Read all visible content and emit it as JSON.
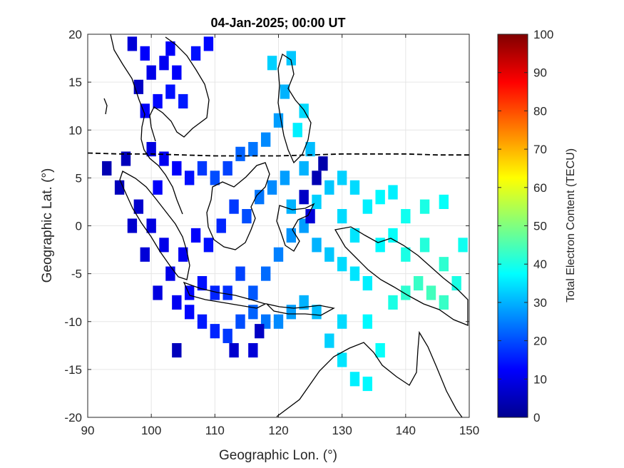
{
  "chart_data": {
    "type": "heatmap",
    "title": "04-Jan-2025; 00:00 UT",
    "xlabel": "Geographic Lon. (°)",
    "ylabel": "Geographic Lat. (°)",
    "xlim": [
      90,
      150
    ],
    "ylim": [
      -20,
      20
    ],
    "xticks": [
      "90",
      "100",
      "110",
      "120",
      "130",
      "140",
      "150"
    ],
    "yticks": [
      "20",
      "15",
      "10",
      "5",
      "0",
      "-5",
      "-10",
      "-15",
      "-20"
    ],
    "grid": true,
    "colormap": "jet",
    "colorbar": {
      "label": "Total Electron Content (TECU)",
      "range": [
        0,
        100
      ],
      "ticks": [
        "100",
        "90",
        "80",
        "70",
        "60",
        "50",
        "40",
        "30",
        "20",
        "10",
        "0"
      ]
    },
    "magnetic_equator_lat": [
      7.6,
      7.5,
      7.5,
      7.4,
      7.3,
      7.3,
      7.3,
      7.4,
      7.5,
      7.5,
      7.5,
      7.4,
      7.4
    ],
    "magnetic_equator_lon": [
      90,
      95,
      100,
      105,
      110,
      115,
      120,
      125,
      130,
      135,
      140,
      145,
      150
    ],
    "tec_cells": [
      {
        "lon": 97,
        "lat": 19,
        "tec": 8
      },
      {
        "lon": 99,
        "lat": 18,
        "tec": 12
      },
      {
        "lon": 100,
        "lat": 16,
        "tec": 10
      },
      {
        "lon": 102,
        "lat": 17,
        "tec": 11
      },
      {
        "lon": 104,
        "lat": 16,
        "tec": 12
      },
      {
        "lon": 101,
        "lat": 13,
        "tec": 13
      },
      {
        "lon": 103,
        "lat": 14,
        "tec": 14
      },
      {
        "lon": 105,
        "lat": 13,
        "tec": 15
      },
      {
        "lon": 99,
        "lat": 12,
        "tec": 12
      },
      {
        "lon": 107,
        "lat": 18,
        "tec": 14
      },
      {
        "lon": 109,
        "lat": 19,
        "tec": 13
      },
      {
        "lon": 103,
        "lat": 18.5,
        "tec": 12
      },
      {
        "lon": 98,
        "lat": 14.5,
        "tec": 6
      },
      {
        "lon": 100,
        "lat": 8,
        "tec": 9
      },
      {
        "lon": 102,
        "lat": 7,
        "tec": 11
      },
      {
        "lon": 101,
        "lat": 4,
        "tec": 12
      },
      {
        "lon": 104,
        "lat": 6,
        "tec": 12
      },
      {
        "lon": 106,
        "lat": 5,
        "tec": 14
      },
      {
        "lon": 108,
        "lat": 6,
        "tec": 18
      },
      {
        "lon": 110,
        "lat": 5,
        "tec": 20
      },
      {
        "lon": 112,
        "lat": 6,
        "tec": 19
      },
      {
        "lon": 114,
        "lat": 7.5,
        "tec": 22
      },
      {
        "lon": 116,
        "lat": 8,
        "tec": 24
      },
      {
        "lon": 118,
        "lat": 9,
        "tec": 26
      },
      {
        "lon": 120,
        "lat": 11,
        "tec": 28
      },
      {
        "lon": 121,
        "lat": 14,
        "tec": 30
      },
      {
        "lon": 122,
        "lat": 17.5,
        "tec": 32
      },
      {
        "lon": 119,
        "lat": 17,
        "tec": 33
      },
      {
        "lon": 123,
        "lat": 10,
        "tec": 36
      },
      {
        "lon": 124,
        "lat": 12,
        "tec": 34
      },
      {
        "lon": 125,
        "lat": 8,
        "tec": 31
      },
      {
        "lon": 124,
        "lat": 6,
        "tec": 30
      },
      {
        "lon": 121,
        "lat": 5,
        "tec": 28
      },
      {
        "lon": 119,
        "lat": 4,
        "tec": 26
      },
      {
        "lon": 117,
        "lat": 3,
        "tec": 24
      },
      {
        "lon": 115,
        "lat": 1,
        "tec": 20
      },
      {
        "lon": 113,
        "lat": 2,
        "tec": 18
      },
      {
        "lon": 111,
        "lat": 0,
        "tec": 16
      },
      {
        "lon": 109,
        "lat": -2,
        "tec": 14
      },
      {
        "lon": 107,
        "lat": -1,
        "tec": 12
      },
      {
        "lon": 105,
        "lat": -3,
        "tec": 11
      },
      {
        "lon": 103,
        "lat": -5,
        "tec": 10
      },
      {
        "lon": 101,
        "lat": -7,
        "tec": 9
      },
      {
        "lon": 99,
        "lat": -3,
        "tec": 8
      },
      {
        "lon": 97,
        "lat": 0,
        "tec": 7
      },
      {
        "lon": 95,
        "lat": 4,
        "tec": 5
      },
      {
        "lon": 93,
        "lat": 6,
        "tec": 4
      },
      {
        "lon": 96,
        "lat": 7,
        "tec": 5
      },
      {
        "lon": 98,
        "lat": 2,
        "tec": 7
      },
      {
        "lon": 100,
        "lat": 0,
        "tec": 9
      },
      {
        "lon": 102,
        "lat": -2,
        "tec": 10
      },
      {
        "lon": 104,
        "lat": -8,
        "tec": 11
      },
      {
        "lon": 106,
        "lat": -9,
        "tec": 13
      },
      {
        "lon": 108,
        "lat": -10,
        "tec": 15
      },
      {
        "lon": 110,
        "lat": -11,
        "tec": 16
      },
      {
        "lon": 112,
        "lat": -11.5,
        "tec": 18
      },
      {
        "lon": 114,
        "lat": -10,
        "tec": 20
      },
      {
        "lon": 116,
        "lat": -9,
        "tec": 22
      },
      {
        "lon": 118,
        "lat": -10,
        "tec": 24
      },
      {
        "lon": 120,
        "lat": -10,
        "tec": 26
      },
      {
        "lon": 122,
        "lat": -9,
        "tec": 28
      },
      {
        "lon": 124,
        "lat": -8,
        "tec": 30
      },
      {
        "lon": 126,
        "lat": -9,
        "tec": 31
      },
      {
        "lon": 128,
        "lat": -12,
        "tec": 33
      },
      {
        "lon": 130,
        "lat": -14,
        "tec": 35
      },
      {
        "lon": 132,
        "lat": -16,
        "tec": 36
      },
      {
        "lon": 134,
        "lat": -16.5,
        "tec": 37
      },
      {
        "lon": 136,
        "lat": -13,
        "tec": 38
      },
      {
        "lon": 138,
        "lat": -8,
        "tec": 40
      },
      {
        "lon": 140,
        "lat": -7,
        "tec": 42
      },
      {
        "lon": 142,
        "lat": -6,
        "tec": 43
      },
      {
        "lon": 144,
        "lat": -7,
        "tec": 44
      },
      {
        "lon": 146,
        "lat": -4,
        "tec": 42
      },
      {
        "lon": 148,
        "lat": -6,
        "tec": 40
      },
      {
        "lon": 149,
        "lat": -2,
        "tec": 39
      },
      {
        "lon": 143,
        "lat": -2,
        "tec": 41
      },
      {
        "lon": 140,
        "lat": -3,
        "tec": 40
      },
      {
        "lon": 138,
        "lat": -1,
        "tec": 38
      },
      {
        "lon": 136,
        "lat": -2,
        "tec": 37
      },
      {
        "lon": 134,
        "lat": 2,
        "tec": 36
      },
      {
        "lon": 136,
        "lat": 3,
        "tec": 37
      },
      {
        "lon": 138,
        "lat": 3.5,
        "tec": 36
      },
      {
        "lon": 140,
        "lat": 1,
        "tec": 39
      },
      {
        "lon": 143,
        "lat": 2,
        "tec": 40
      },
      {
        "lon": 146,
        "lat": 2.5,
        "tec": 38
      },
      {
        "lon": 132,
        "lat": 4,
        "tec": 34
      },
      {
        "lon": 130,
        "lat": 5,
        "tec": 33
      },
      {
        "lon": 128,
        "lat": 4,
        "tec": 32
      },
      {
        "lon": 130,
        "lat": 1,
        "tec": 34
      },
      {
        "lon": 132,
        "lat": -1,
        "tec": 35
      },
      {
        "lon": 130,
        "lat": -4,
        "tec": 34
      },
      {
        "lon": 132,
        "lat": -5,
        "tec": 35
      },
      {
        "lon": 134,
        "lat": -6,
        "tec": 36
      },
      {
        "lon": 128,
        "lat": -3,
        "tec": 32
      },
      {
        "lon": 126,
        "lat": -2,
        "tec": 30
      },
      {
        "lon": 124,
        "lat": 0,
        "tec": 28
      },
      {
        "lon": 122,
        "lat": -1,
        "tec": 27
      },
      {
        "lon": 120,
        "lat": -3,
        "tec": 25
      },
      {
        "lon": 118,
        "lat": -5,
        "tec": 23
      },
      {
        "lon": 116,
        "lat": -7,
        "tec": 21
      },
      {
        "lon": 114,
        "lat": -5,
        "tec": 19
      },
      {
        "lon": 112,
        "lat": -7,
        "tec": 17
      },
      {
        "lon": 110,
        "lat": -7,
        "tec": 16
      },
      {
        "lon": 108,
        "lat": -6,
        "tec": 14
      },
      {
        "lon": 106,
        "lat": -7,
        "tec": 13
      },
      {
        "lon": 124,
        "lat": 3,
        "tec": 6
      },
      {
        "lon": 126,
        "lat": 5,
        "tec": 4
      },
      {
        "lon": 127,
        "lat": 6.5,
        "tec": 3
      },
      {
        "lon": 125,
        "lat": 1,
        "tec": 8
      },
      {
        "lon": 117,
        "lat": -11,
        "tec": 6
      },
      {
        "lon": 113,
        "lat": -13,
        "tec": 7
      },
      {
        "lon": 104,
        "lat": -13,
        "tec": 5
      },
      {
        "lon": 116,
        "lat": -13,
        "tec": 8
      },
      {
        "lon": 126,
        "lat": 2.5,
        "tec": 33
      },
      {
        "lon": 122,
        "lat": 2,
        "tec": 30
      },
      {
        "lon": 134,
        "lat": -10,
        "tec": 37
      },
      {
        "lon": 130,
        "lat": -10,
        "tec": 34
      },
      {
        "lon": 146,
        "lat": -8,
        "tec": 43
      }
    ]
  }
}
